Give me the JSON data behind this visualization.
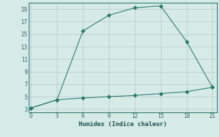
{
  "xlabel": "Humidex (Indice chaleur)",
  "line1_x": [
    0,
    3,
    6,
    9,
    12,
    15,
    18,
    21
  ],
  "line1_y": [
    3.2,
    4.5,
    15.5,
    18.0,
    19.2,
    19.5,
    13.8,
    6.5
  ],
  "line2_x": [
    0,
    3,
    6,
    9,
    12,
    15,
    18,
    21
  ],
  "line2_y": [
    3.2,
    4.5,
    4.8,
    5.0,
    5.2,
    5.5,
    5.8,
    6.5
  ],
  "line_color": "#2a7a6e",
  "bg_color": "#d6eae8",
  "grid_color": "#b8cece",
  "ylim": [
    2.5,
    20.0
  ],
  "xlim": [
    -0.3,
    21.5
  ],
  "yticks": [
    3,
    5,
    7,
    9,
    11,
    13,
    15,
    17,
    19
  ],
  "xticks": [
    0,
    3,
    6,
    9,
    12,
    15,
    18,
    21
  ]
}
